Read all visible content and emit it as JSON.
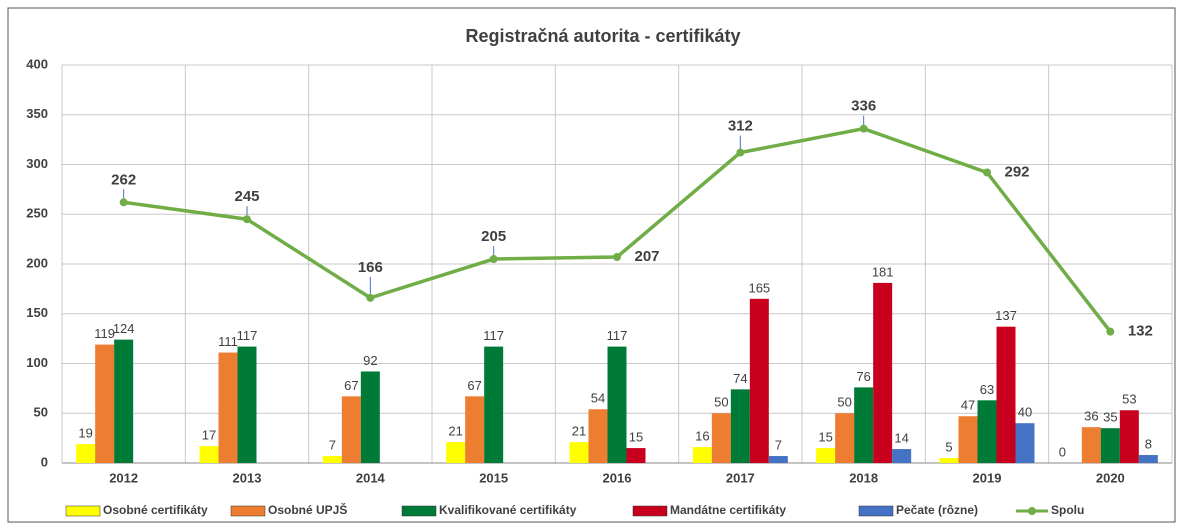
{
  "chart_data": {
    "type": "bar-line",
    "title": "Registračná autorita - certifikáty",
    "categories": [
      "2012",
      "2013",
      "2014",
      "2015",
      "2016",
      "2017",
      "2018",
      "2019",
      "2020"
    ],
    "series": [
      {
        "name": "Osobné certifikáty",
        "color": "#ffff00",
        "type": "bar",
        "values": [
          19,
          17,
          7,
          21,
          21,
          16,
          15,
          5,
          0
        ]
      },
      {
        "name": "Osobné UPJŠ",
        "color": "#ed7d31",
        "type": "bar",
        "values": [
          119,
          111,
          67,
          67,
          54,
          50,
          50,
          47,
          36
        ]
      },
      {
        "name": "Kvalifikované certifikáty",
        "color": "#007a37",
        "type": "bar",
        "values": [
          124,
          117,
          92,
          117,
          117,
          74,
          76,
          63,
          35
        ]
      },
      {
        "name": "Mandátne certifikáty",
        "color": "#c8001e",
        "type": "bar",
        "values": [
          null,
          null,
          null,
          null,
          15,
          165,
          181,
          137,
          53
        ]
      },
      {
        "name": "Pečate (rôzne)",
        "color": "#4472c4",
        "type": "bar",
        "values": [
          null,
          null,
          null,
          null,
          null,
          7,
          14,
          40,
          8
        ]
      },
      {
        "name": "Spolu",
        "color": "#70ad47",
        "type": "line",
        "values": [
          262,
          245,
          166,
          205,
          207,
          312,
          336,
          292,
          132
        ]
      }
    ],
    "ylim": [
      0,
      400
    ],
    "yticks": [
      0,
      50,
      100,
      150,
      200,
      250,
      300,
      350,
      400
    ],
    "grid": true,
    "legend": "bottom"
  }
}
